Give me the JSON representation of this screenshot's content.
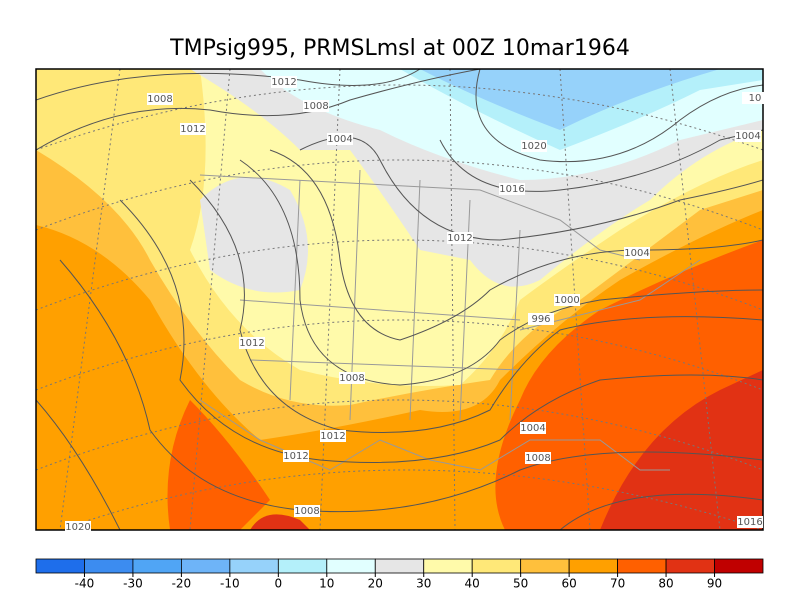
{
  "title": "TMPsig995, PRMSLmsl at 00Z  10mar1964",
  "contour_labels": [
    "1012",
    "1008",
    "1008",
    "1012",
    "1004",
    "1020",
    "1016",
    "1012",
    "1004",
    "1000",
    "996",
    "1012",
    "1008",
    "1012",
    "1004",
    "1008",
    "1012",
    "1008",
    "1020",
    "1004",
    "10",
    "1016"
  ],
  "colorbar": {
    "ticks": [
      -40,
      -30,
      -20,
      -10,
      0,
      10,
      20,
      30,
      40,
      50,
      60,
      70,
      80,
      90
    ],
    "colors": [
      "#1e6eeb",
      "#3c8cf0",
      "#50a5f5",
      "#6eb4f8",
      "#96d2fa",
      "#b4f0fa",
      "#e1ffff",
      "#e6e6e6",
      "#fffaaa",
      "#ffe878",
      "#ffc03c",
      "#ffa000",
      "#ff6000",
      "#e13214",
      "#c00000"
    ]
  }
}
